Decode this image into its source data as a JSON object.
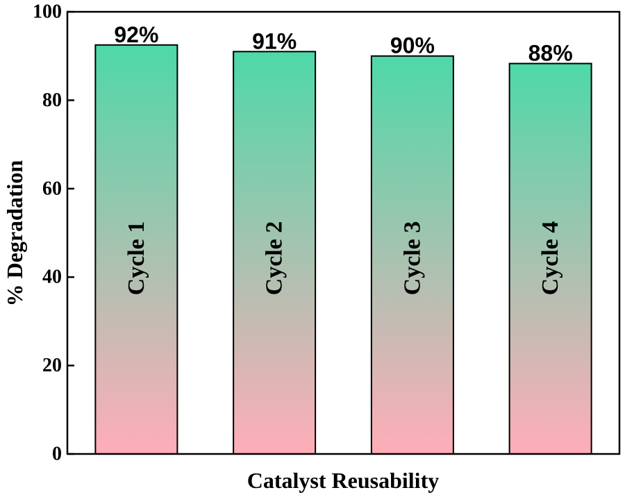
{
  "chart_data": {
    "type": "bar",
    "categories": [
      "Cycle 1",
      "Cycle 2",
      "Cycle 3",
      "Cycle 4"
    ],
    "values": [
      92.5,
      91,
      90,
      88.3
    ],
    "data_labels": [
      "92%",
      "91%",
      "90%",
      "88%"
    ],
    "xlabel": "Catalyst Reusability",
    "ylabel": "% Degradation",
    "ylim": [
      0,
      100
    ],
    "yticks": [
      0,
      20,
      40,
      60,
      80,
      100
    ],
    "grid": false,
    "legend": "none",
    "colors": {
      "bar_top": "#4ed8a8",
      "bar_bottom": "#ffadb8",
      "edge": "#000000"
    }
  }
}
